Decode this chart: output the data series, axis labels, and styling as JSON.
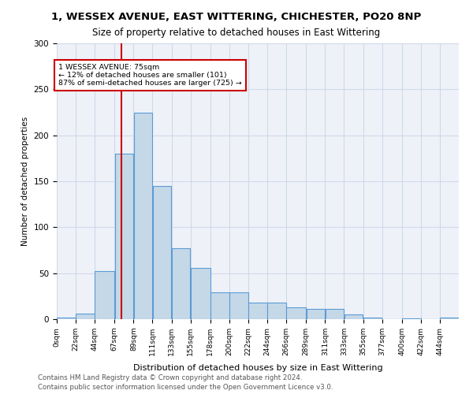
{
  "title_line1": "1, WESSEX AVENUE, EAST WITTERING, CHICHESTER, PO20 8NP",
  "title_line2": "Size of property relative to detached houses in East Wittering",
  "xlabel": "Distribution of detached houses by size in East Wittering",
  "ylabel": "Number of detached properties",
  "bin_labels": [
    "0sqm",
    "22sqm",
    "44sqm",
    "67sqm",
    "89sqm",
    "111sqm",
    "133sqm",
    "155sqm",
    "178sqm",
    "200sqm",
    "222sqm",
    "244sqm",
    "266sqm",
    "289sqm",
    "311sqm",
    "333sqm",
    "355sqm",
    "377sqm",
    "400sqm",
    "422sqm",
    "444sqm"
  ],
  "bar_heights": [
    2,
    6,
    52,
    180,
    225,
    145,
    77,
    56,
    29,
    29,
    18,
    18,
    13,
    11,
    11,
    5,
    2,
    0,
    1,
    0,
    2
  ],
  "bar_color": "#c5d8e8",
  "bar_edge_color": "#5b9bd5",
  "grid_color": "#d0d8e8",
  "background_color": "#eef2f8",
  "red_line_x": 75,
  "annotation_text_line1": "1 WESSEX AVENUE: 75sqm",
  "annotation_text_line2": "← 12% of detached houses are smaller (101)",
  "annotation_text_line3": "87% of semi-detached houses are larger (725) →",
  "annotation_border_color": "#cc0000",
  "red_line_color": "#cc0000",
  "ylim": [
    0,
    300
  ],
  "yticks": [
    0,
    50,
    100,
    150,
    200,
    250,
    300
  ],
  "footnote1": "Contains HM Land Registry data © Crown copyright and database right 2024.",
  "footnote2": "Contains public sector information licensed under the Open Government Licence v3.0.",
  "bin_edges": [
    0,
    22,
    44,
    67,
    89,
    111,
    133,
    155,
    178,
    200,
    222,
    244,
    266,
    289,
    311,
    333,
    355,
    377,
    400,
    422,
    444,
    466
  ]
}
